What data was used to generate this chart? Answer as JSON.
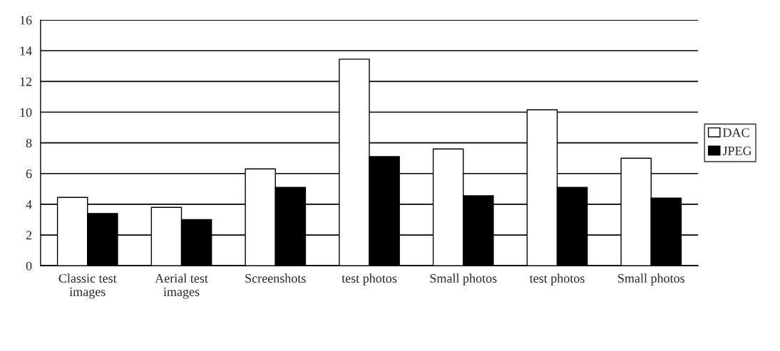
{
  "chart_data": {
    "type": "bar",
    "categories": [
      "Classic test images",
      "Aerial test images",
      "Screenshots",
      "test photos",
      "Small photos",
      "test photos",
      "Small photos"
    ],
    "series": [
      {
        "name": "DAC",
        "color": "#ffffff",
        "values": [
          4.45,
          3.8,
          6.3,
          13.45,
          7.6,
          10.15,
          7.0
        ]
      },
      {
        "name": "JPEG",
        "color": "#000000",
        "values": [
          3.4,
          3.0,
          5.1,
          7.1,
          4.55,
          5.1,
          4.4
        ]
      }
    ],
    "ylim": [
      0,
      16
    ],
    "yticks": [
      0,
      2,
      4,
      6,
      8,
      10,
      12,
      14,
      16
    ],
    "grid": "y",
    "legend": "right"
  }
}
